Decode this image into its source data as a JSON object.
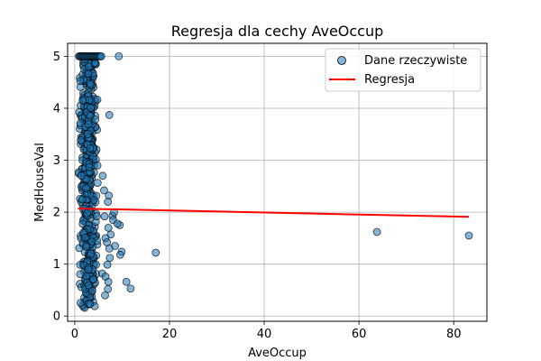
{
  "chart_data": {
    "type": "scatter",
    "title": "Regresja dla cechy AveOccup",
    "xlabel": "AveOccup",
    "ylabel": "MedHouseVal",
    "xlim": [
      -1.5,
      87
    ],
    "ylim": [
      -0.1,
      5.25
    ],
    "xticks": [
      0,
      20,
      40,
      60,
      80
    ],
    "yticks": [
      0,
      1,
      2,
      3,
      4,
      5
    ],
    "grid": true,
    "legend_position": "top-right",
    "colors": {
      "points": "#1f77b4",
      "regression": "#ff0000"
    },
    "series": [
      {
        "name": "Dane rzeczywiste",
        "kind": "scatter",
        "points": [
          [
            9.3,
            5.0
          ],
          [
            7.3,
            3.87
          ],
          [
            7.2,
            2.32
          ],
          [
            7.0,
            2.2
          ],
          [
            6.2,
            2.42
          ],
          [
            8.0,
            1.93
          ],
          [
            8.3,
            2.0
          ],
          [
            8.1,
            1.85
          ],
          [
            9.5,
            1.75
          ],
          [
            9.0,
            1.78
          ],
          [
            7.6,
            1.57
          ],
          [
            7.1,
            1.7
          ],
          [
            6.5,
            1.5
          ],
          [
            8.5,
            1.35
          ],
          [
            7.3,
            1.3
          ],
          [
            9.9,
            1.24
          ],
          [
            9.6,
            1.18
          ],
          [
            7.4,
            1.12
          ],
          [
            6.9,
            0.99
          ],
          [
            5.8,
            0.82
          ],
          [
            6.5,
            0.76
          ],
          [
            10.9,
            0.66
          ],
          [
            7.1,
            0.66
          ],
          [
            11.8,
            0.53
          ],
          [
            7.0,
            0.52
          ],
          [
            17.1,
            1.22
          ],
          [
            63.8,
            1.62
          ],
          [
            83.2,
            1.55
          ],
          [
            6.3,
            1.92
          ],
          [
            6.8,
            1.42
          ],
          [
            5.9,
            2.7
          ],
          [
            6.4,
            0.4
          ]
        ],
        "dense_region": {
          "x_range": [
            0.7,
            6.0
          ],
          "y_range": [
            0.15,
            5.0
          ],
          "x_mode": 2.9
        }
      },
      {
        "name": "Regresja",
        "kind": "line",
        "points": [
          [
            0.7,
            2.07
          ],
          [
            83.2,
            1.91
          ]
        ]
      }
    ]
  }
}
